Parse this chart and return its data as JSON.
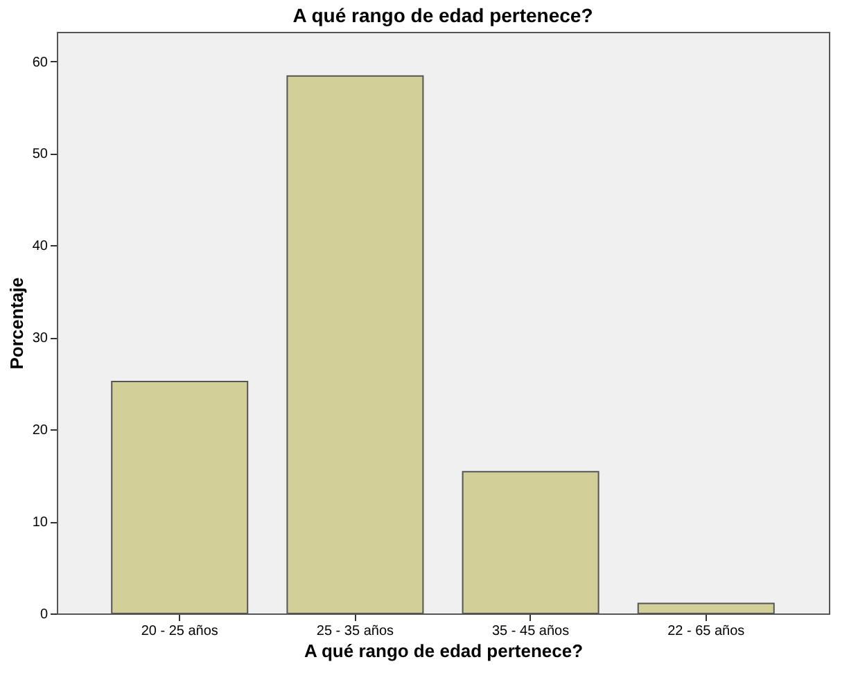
{
  "chart_data": {
    "type": "bar",
    "title": "A qué rango de edad pertenece?",
    "xlabel": "A qué rango de edad pertenece?",
    "ylabel": "Porcentaje",
    "categories": [
      "20 - 25 años",
      "25 - 35 años",
      "35 - 45 años",
      "22 - 65 años"
    ],
    "values": [
      25.2,
      58.4,
      15.4,
      1.1
    ],
    "color": "#d3cf98",
    "ylim": [
      0,
      63.2
    ],
    "yticks": [
      0,
      10,
      20,
      30,
      40,
      50,
      60
    ],
    "grid": false
  }
}
